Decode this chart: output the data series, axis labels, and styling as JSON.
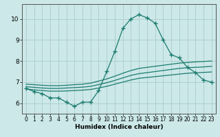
{
  "xlabel": "Humidex (Indice chaleur)",
  "background_color": "#cce8e8",
  "grid_color": "#aacccc",
  "line_color": "#1a7a6e",
  "xlim": [
    -0.5,
    23.5
  ],
  "ylim": [
    5.5,
    10.7
  ],
  "yticks": [
    6,
    7,
    8,
    9,
    10
  ],
  "xticks": [
    0,
    1,
    2,
    3,
    4,
    5,
    6,
    7,
    8,
    9,
    10,
    11,
    12,
    13,
    14,
    15,
    16,
    17,
    18,
    19,
    20,
    21,
    22,
    23
  ],
  "main_x": [
    0,
    1,
    2,
    3,
    4,
    5,
    6,
    7,
    8,
    9,
    10,
    11,
    12,
    13,
    14,
    15,
    16,
    17,
    18,
    19,
    20,
    21,
    22,
    23
  ],
  "main_y": [
    6.7,
    6.55,
    6.45,
    6.25,
    6.25,
    6.05,
    5.85,
    6.05,
    6.05,
    6.6,
    7.5,
    8.45,
    9.55,
    10.0,
    10.2,
    10.05,
    9.8,
    9.0,
    8.3,
    8.15,
    7.7,
    7.45,
    7.1,
    7.0
  ],
  "upper_x": [
    0,
    1,
    2,
    3,
    4,
    5,
    6,
    7,
    8,
    9,
    10,
    11,
    12,
    13,
    14,
    15,
    16,
    17,
    18,
    19,
    20,
    21,
    22,
    23
  ],
  "upper_y": [
    6.9,
    6.88,
    6.85,
    6.83,
    6.83,
    6.85,
    6.88,
    6.9,
    6.95,
    7.05,
    7.15,
    7.28,
    7.42,
    7.55,
    7.65,
    7.7,
    7.75,
    7.8,
    7.85,
    7.9,
    7.93,
    7.96,
    7.98,
    8.0
  ],
  "mid_x": [
    0,
    1,
    2,
    3,
    4,
    5,
    6,
    7,
    8,
    9,
    10,
    11,
    12,
    13,
    14,
    15,
    16,
    17,
    18,
    19,
    20,
    21,
    22,
    23
  ],
  "mid_y": [
    6.78,
    6.75,
    6.72,
    6.7,
    6.7,
    6.72,
    6.74,
    6.76,
    6.8,
    6.88,
    6.97,
    7.08,
    7.2,
    7.32,
    7.4,
    7.45,
    7.5,
    7.55,
    7.6,
    7.65,
    7.68,
    7.7,
    7.72,
    7.75
  ],
  "lower_x": [
    0,
    1,
    2,
    3,
    4,
    5,
    6,
    7,
    8,
    9,
    10,
    11,
    12,
    13,
    14,
    15,
    16,
    17,
    18,
    19,
    20,
    21,
    22,
    23
  ],
  "lower_y": [
    6.68,
    6.63,
    6.6,
    6.57,
    6.57,
    6.58,
    6.6,
    6.62,
    6.65,
    6.72,
    6.8,
    6.9,
    7.0,
    7.1,
    7.18,
    7.22,
    7.26,
    7.3,
    7.34,
    7.38,
    7.42,
    7.44,
    7.46,
    7.48
  ]
}
